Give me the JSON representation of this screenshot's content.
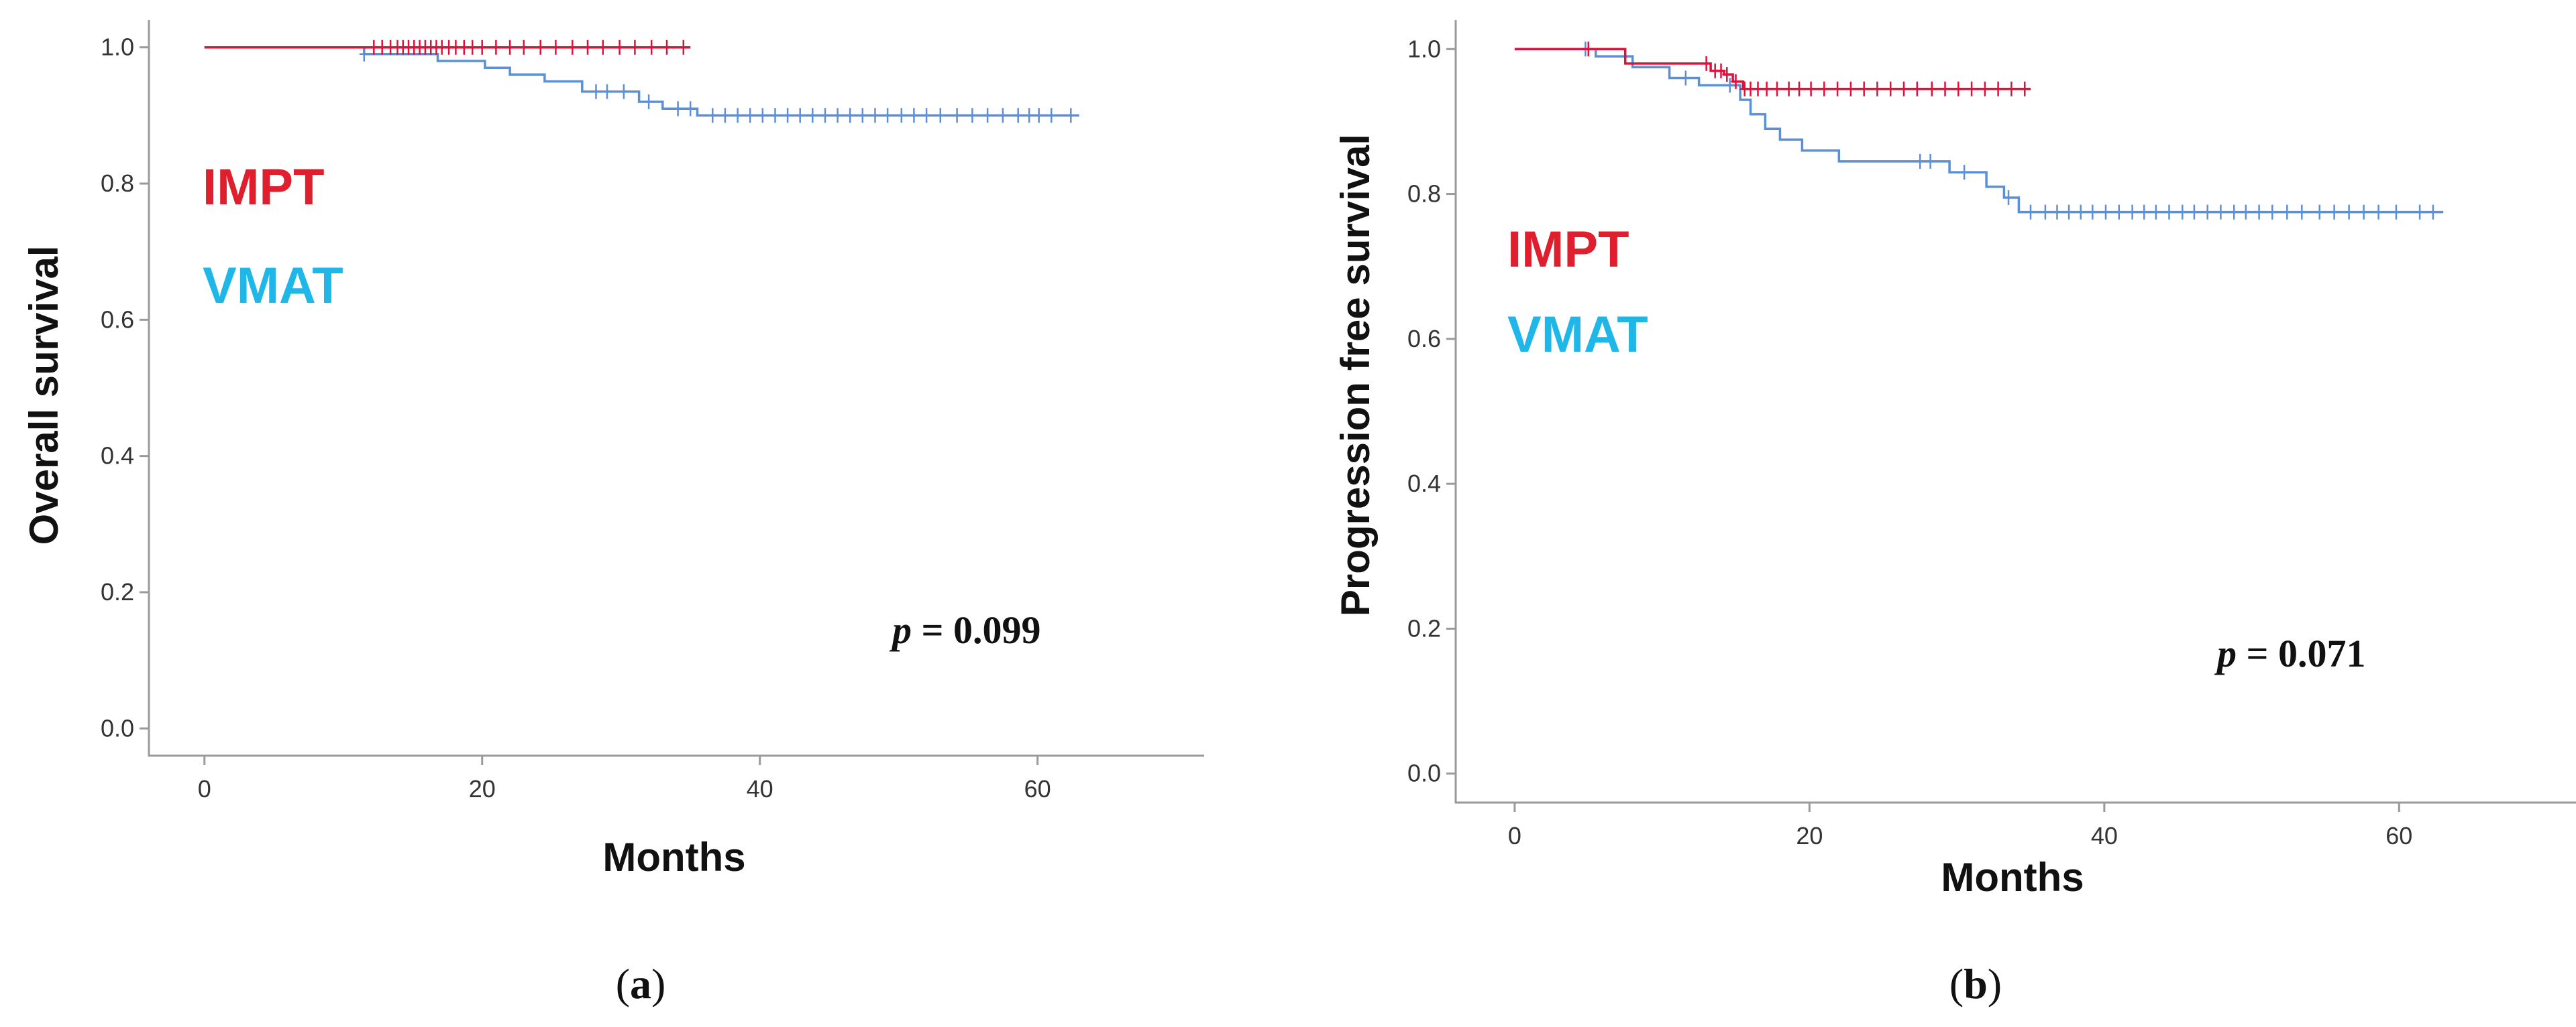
{
  "colors": {
    "impt": "#e0103a",
    "vmat": "#5b8fd6",
    "impt_label": "#e01f2e",
    "vmat_label": "#1fb7e8"
  },
  "chart_data": [
    {
      "type": "line",
      "subtype": "kaplan-meier",
      "panel_label": "a",
      "xlabel": "Months",
      "ylabel": "Overall  survival",
      "xlim": [
        -4,
        72
      ],
      "ylim": [
        -0.04,
        1.04
      ],
      "xticks": [
        "0",
        "20",
        "40",
        "60"
      ],
      "yticks": [
        "0.0",
        "0.2",
        "0.4",
        "0.6",
        "0.8",
        "1.0"
      ],
      "p_value": {
        "prefix": "p",
        "text": " = 0.099"
      },
      "legend": [
        {
          "name": "IMPT",
          "color_key": "impt_label"
        },
        {
          "name": "VMAT",
          "color_key": "vmat_label"
        }
      ],
      "series": [
        {
          "name": "IMPT",
          "color_key": "impt",
          "steps": [
            [
              0,
              1.0
            ],
            [
              35,
              1.0
            ]
          ],
          "censor_x": [
            12.2,
            12.8,
            13.4,
            13.9,
            14.3,
            14.7,
            15.1,
            15.5,
            15.9,
            16.3,
            16.7,
            17.1,
            17.6,
            18.1,
            18.7,
            19.3,
            20.0,
            21.0,
            22.0,
            23.0,
            24.2,
            25.3,
            26.5,
            27.6,
            28.7,
            29.9,
            31.0,
            32.2,
            33.3,
            34.5
          ]
        },
        {
          "name": "VMAT",
          "color_key": "vmat",
          "steps": [
            [
              0,
              1.0
            ],
            [
              11.5,
              1.0
            ],
            [
              11.5,
              0.99
            ],
            [
              16.8,
              0.99
            ],
            [
              16.8,
              0.98
            ],
            [
              20.2,
              0.98
            ],
            [
              20.2,
              0.97
            ],
            [
              22.0,
              0.97
            ],
            [
              22.0,
              0.96
            ],
            [
              24.5,
              0.96
            ],
            [
              24.5,
              0.95
            ],
            [
              27.2,
              0.95
            ],
            [
              27.2,
              0.935
            ],
            [
              31.3,
              0.935
            ],
            [
              31.3,
              0.92
            ],
            [
              33.0,
              0.92
            ],
            [
              33.0,
              0.91
            ],
            [
              35.5,
              0.91
            ],
            [
              35.5,
              0.9
            ],
            [
              63,
              0.9
            ]
          ],
          "censor_x": [
            11.5,
            28.2,
            29.0,
            30.2,
            32.0,
            34.1,
            35.0,
            36.6,
            37.5,
            38.4,
            39.3,
            40.2,
            41.1,
            42.0,
            42.9,
            43.8,
            44.7,
            45.6,
            46.5,
            47.4,
            48.3,
            49.2,
            50.2,
            51.1,
            52.0,
            53.0,
            54.2,
            55.3,
            56.4,
            57.5,
            58.6,
            59.4,
            60.1,
            61.0,
            62.4
          ]
        }
      ]
    },
    {
      "type": "line",
      "subtype": "kaplan-meier",
      "panel_label": "b",
      "xlabel": "Months",
      "ylabel": "Progression free survival",
      "xlim": [
        -4,
        72
      ],
      "ylim": [
        -0.04,
        1.04
      ],
      "xticks": [
        "0",
        "20",
        "40",
        "60"
      ],
      "yticks": [
        "0.0",
        "0.2",
        "0.4",
        "0.6",
        "0.8",
        "1.0"
      ],
      "p_value": {
        "prefix": "p",
        "text": " = 0.071"
      },
      "legend": [
        {
          "name": "IMPT",
          "color_key": "impt_label"
        },
        {
          "name": "VMAT",
          "color_key": "vmat_label"
        }
      ],
      "series": [
        {
          "name": "IMPT",
          "color_key": "impt",
          "steps": [
            [
              0,
              1.0
            ],
            [
              7.5,
              1.0
            ],
            [
              7.5,
              0.98
            ],
            [
              13.3,
              0.98
            ],
            [
              13.3,
              0.97
            ],
            [
              14.2,
              0.97
            ],
            [
              14.2,
              0.965
            ],
            [
              14.8,
              0.965
            ],
            [
              14.8,
              0.955
            ],
            [
              15.5,
              0.955
            ],
            [
              15.5,
              0.945
            ],
            [
              35,
              0.945
            ]
          ],
          "censor_x": [
            5.0,
            13.0,
            13.6,
            14.0,
            14.4,
            15.0,
            15.6,
            16.0,
            16.5,
            17.1,
            17.8,
            18.6,
            19.3,
            20.1,
            21.0,
            21.9,
            22.8,
            23.7,
            24.6,
            25.5,
            26.4,
            27.3,
            28.3,
            29.2,
            30.1,
            31.0,
            31.9,
            32.8,
            33.7,
            34.6
          ]
        },
        {
          "name": "VMAT",
          "color_key": "vmat",
          "steps": [
            [
              0,
              1.0
            ],
            [
              5.5,
              1.0
            ],
            [
              5.5,
              0.99
            ],
            [
              8.0,
              0.99
            ],
            [
              8.0,
              0.975
            ],
            [
              10.5,
              0.975
            ],
            [
              10.5,
              0.96
            ],
            [
              12.5,
              0.96
            ],
            [
              12.5,
              0.95
            ],
            [
              15.3,
              0.95
            ],
            [
              15.3,
              0.93
            ],
            [
              16.0,
              0.93
            ],
            [
              16.0,
              0.91
            ],
            [
              17.0,
              0.91
            ],
            [
              17.0,
              0.89
            ],
            [
              18.0,
              0.89
            ],
            [
              18.0,
              0.875
            ],
            [
              19.5,
              0.875
            ],
            [
              19.5,
              0.86
            ],
            [
              22.0,
              0.86
            ],
            [
              22.0,
              0.845
            ],
            [
              29.5,
              0.845
            ],
            [
              29.5,
              0.83
            ],
            [
              32.0,
              0.83
            ],
            [
              32.0,
              0.81
            ],
            [
              33.2,
              0.81
            ],
            [
              33.2,
              0.795
            ],
            [
              34.2,
              0.795
            ],
            [
              34.2,
              0.775
            ],
            [
              63,
              0.775
            ]
          ],
          "censor_x": [
            4.8,
            11.6,
            14.6,
            27.5,
            28.2,
            30.5,
            33.5,
            35.0,
            36.0,
            36.8,
            37.6,
            38.4,
            39.2,
            40.1,
            41.0,
            41.9,
            42.7,
            43.5,
            44.4,
            45.3,
            46.1,
            47.0,
            47.9,
            48.8,
            49.6,
            50.5,
            51.4,
            52.4,
            53.4,
            54.6,
            55.6,
            56.6,
            57.6,
            58.6,
            59.8,
            61.4,
            62.3
          ]
        }
      ]
    }
  ]
}
